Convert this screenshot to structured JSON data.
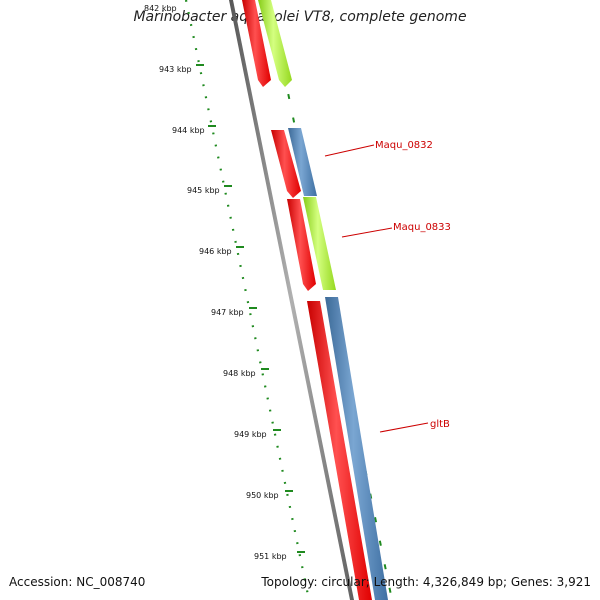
{
  "header": {
    "title": "Marinobacter aquaeolei VT8, complete genome"
  },
  "footer": {
    "accession": "Accession: NC_008740",
    "summary": "Topology: circular; Length: 4,326,849 bp; Genes: 3,921"
  },
  "ruler": {
    "color": "#1f8a1f",
    "ticks": [
      "842 kbp",
      "943 kbp",
      "944 kbp",
      "945 kbp",
      "946 kbp",
      "947 kbp",
      "948 kbp",
      "949 kbp",
      "950 kbp",
      "951 kbp"
    ]
  },
  "gene_labels": [
    "Maqu_0832",
    "Maqu_0833",
    "gltB"
  ],
  "colors": {
    "backbone": "#808080",
    "cds": "#ff1010",
    "gene_blue": "#4a7fb5",
    "gene_green": "#a6ee2c",
    "label": "#cc0000"
  }
}
